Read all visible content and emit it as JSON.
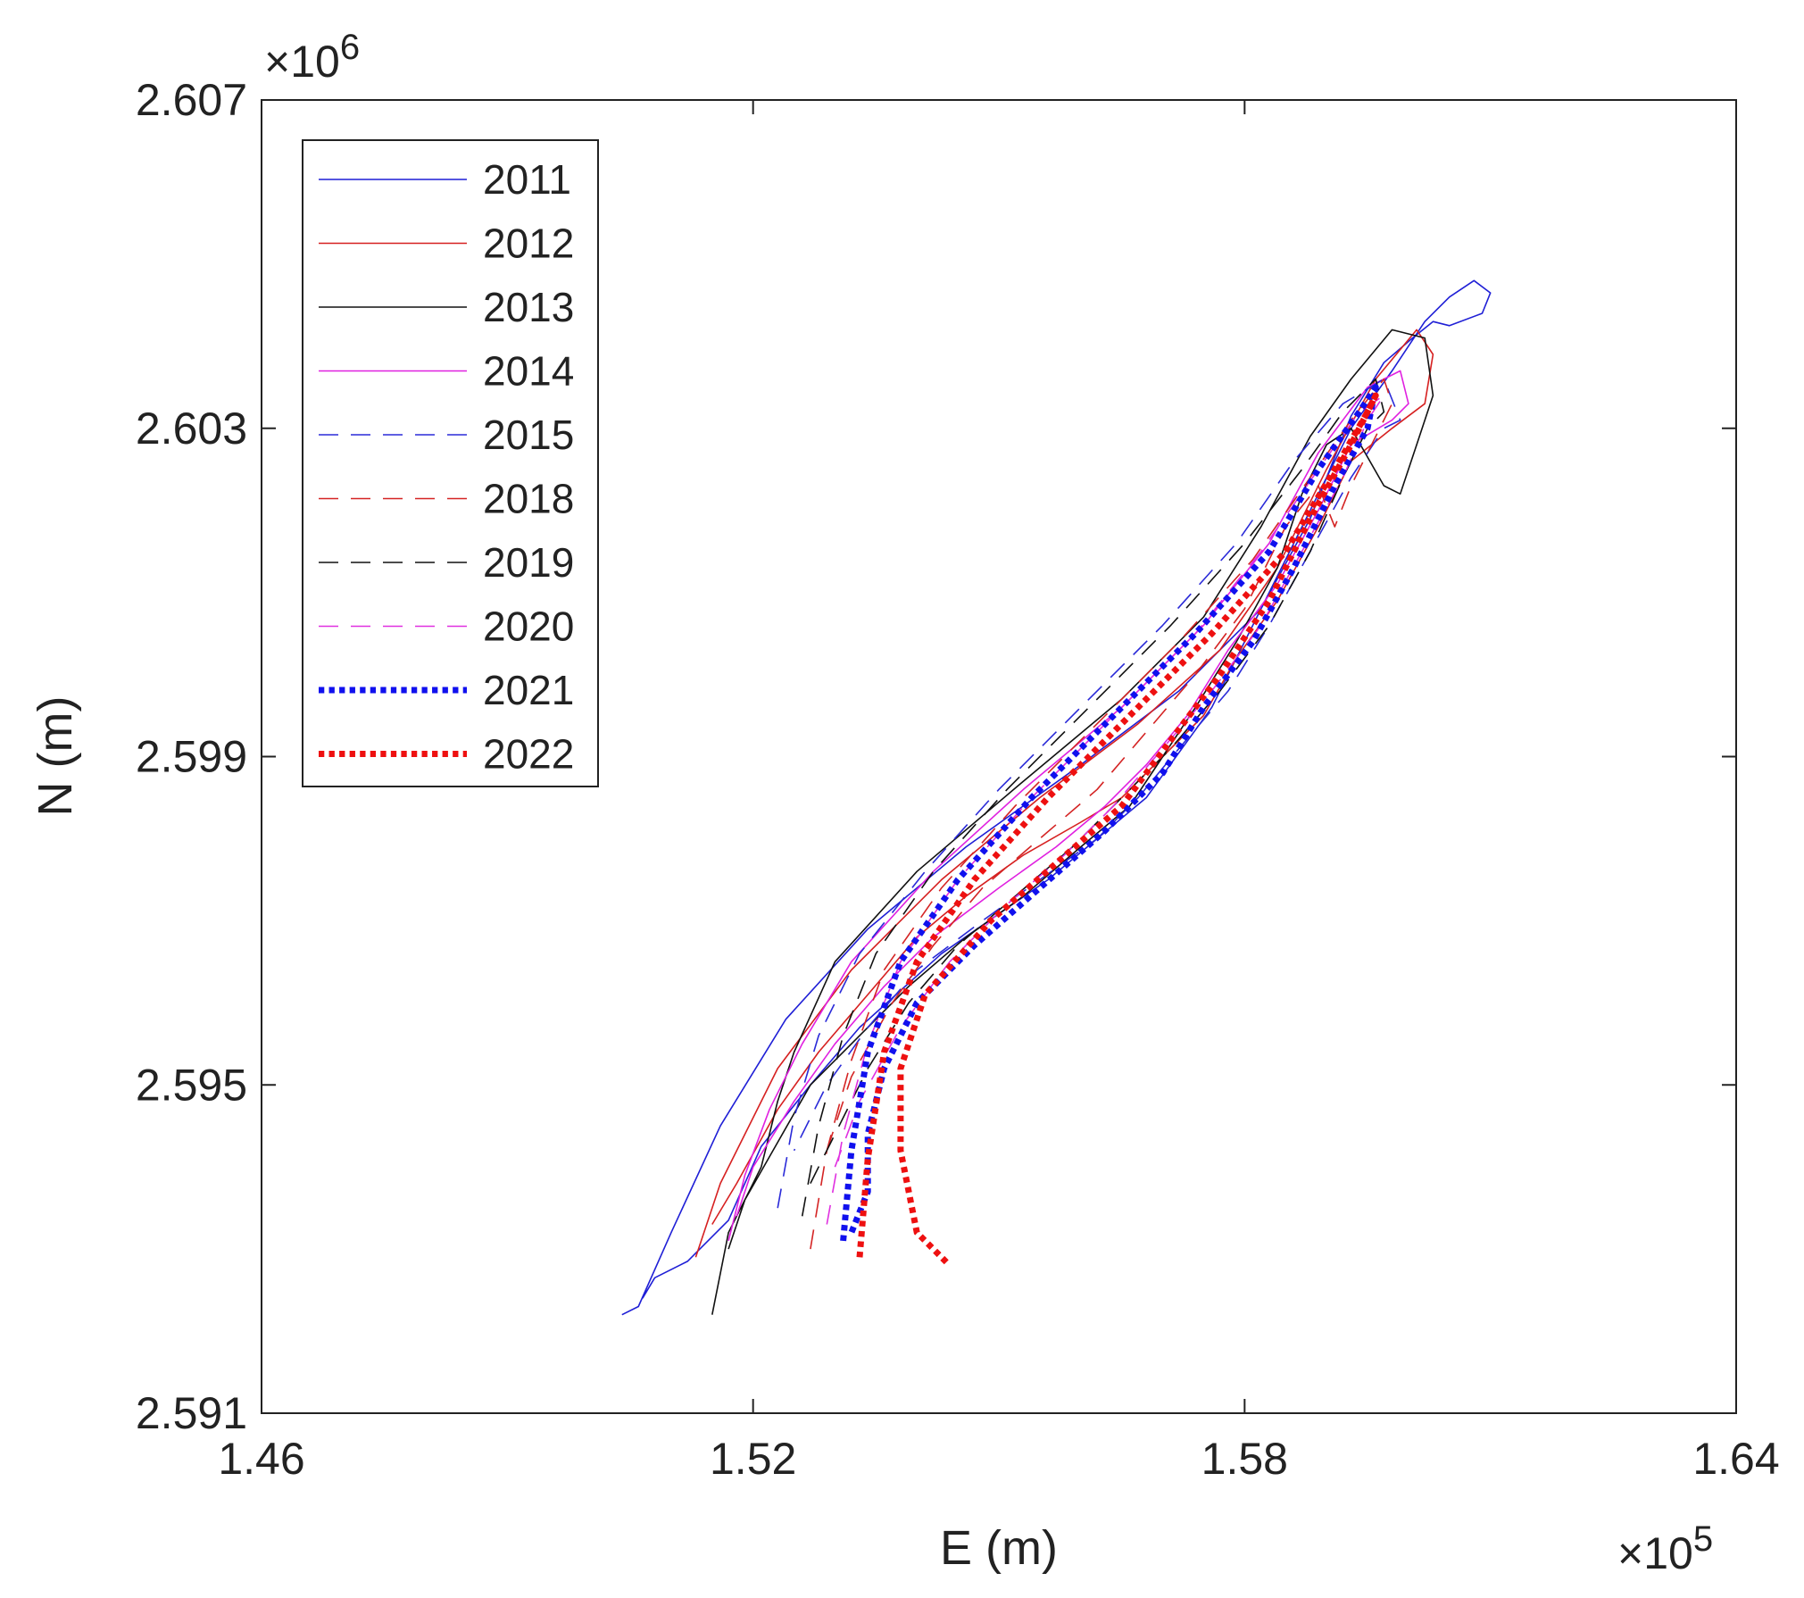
{
  "chart_data": {
    "type": "line",
    "title": "",
    "xlabel": "E (m)",
    "ylabel": "N (m)",
    "x_exponent_label": "×10^5",
    "y_exponent_label": "×10^6",
    "xlim": [
      146000,
      164000
    ],
    "ylim": [
      2591000,
      2607000
    ],
    "xticks": [
      146000,
      152000,
      158000,
      164000
    ],
    "yticks": [
      2591000,
      2595000,
      2599000,
      2603000,
      2607000
    ],
    "xtick_labels": [
      "1.46",
      "1.52",
      "1.58",
      "1.64"
    ],
    "ytick_labels": [
      "2.591",
      "2.595",
      "2.599",
      "2.603",
      "2.607"
    ],
    "grid": false,
    "legend_position": "top-left",
    "series": [
      {
        "name": "2011",
        "color": "#1f1fd6",
        "style": "solid",
        "width": 1.6,
        "x": [
          150400,
          150600,
          151000,
          151600,
          152400,
          153400,
          154600,
          156000,
          157200,
          158200,
          158800,
          159300,
          159800,
          160200,
          160500,
          160800,
          161000,
          160900,
          160500,
          160300,
          160050,
          159700,
          159300,
          158800,
          158200,
          157600,
          156800,
          155600,
          154300,
          153300,
          152700,
          152100,
          151700,
          151200,
          150800,
          150650
        ],
        "y": [
          2592200,
          2592300,
          2593200,
          2594500,
          2595800,
          2596900,
          2597900,
          2598900,
          2599800,
          2600800,
          2602000,
          2603000,
          2603700,
          2604300,
          2604600,
          2604800,
          2604650,
          2604400,
          2604250,
          2604300,
          2604100,
          2603800,
          2603150,
          2601900,
          2600800,
          2599600,
          2598500,
          2597500,
          2596600,
          2595700,
          2595000,
          2594250,
          2593350,
          2592850,
          2592650,
          2592400
        ]
      },
      {
        "name": "2012",
        "color": "#d62020",
        "style": "solid",
        "width": 1.6,
        "x": [
          151300,
          151600,
          152300,
          153200,
          154300,
          155500,
          156700,
          157700,
          158400,
          159000,
          159600,
          160100,
          160300,
          160200,
          159800,
          159300,
          158900,
          158400,
          157900,
          157500,
          157000,
          156500,
          156000,
          155300,
          154600,
          154000,
          153400,
          152800,
          152300,
          151800,
          151500
        ],
        "y": [
          2592900,
          2593800,
          2595200,
          2596400,
          2597500,
          2598500,
          2599400,
          2600300,
          2601300,
          2602500,
          2603600,
          2604200,
          2603900,
          2603300,
          2603000,
          2602600,
          2601800,
          2600900,
          2600200,
          2599500,
          2599000,
          2598500,
          2598200,
          2597800,
          2597300,
          2596800,
          2596100,
          2595400,
          2594700,
          2593800,
          2593300
        ]
      },
      {
        "name": "2013",
        "color": "#111111",
        "style": "solid",
        "width": 1.6,
        "x": [
          151500,
          151700,
          152100,
          152300,
          152500,
          153000,
          154000,
          155300,
          156500,
          157500,
          158200,
          158800,
          159300,
          159800,
          160200,
          160300,
          160100,
          159900,
          159700,
          159300,
          159000,
          158700,
          158400,
          157900,
          157400,
          157000,
          156600,
          156000,
          155300,
          154600,
          153900,
          153300,
          152700,
          152300,
          151900,
          151700
        ],
        "y": [
          2592200,
          2593200,
          2594000,
          2594800,
          2595400,
          2596500,
          2597600,
          2598700,
          2599700,
          2600700,
          2601800,
          2602900,
          2603600,
          2604200,
          2604100,
          2603400,
          2602800,
          2602200,
          2602300,
          2603000,
          2602800,
          2602200,
          2601300,
          2600400,
          2599600,
          2599000,
          2598400,
          2597900,
          2597300,
          2596800,
          2596200,
          2595600,
          2595000,
          2594300,
          2593600,
          2593000
        ]
      },
      {
        "name": "2014",
        "color": "#e020e0",
        "style": "solid",
        "width": 1.6,
        "x": [
          151700,
          151900,
          152200,
          152600,
          153200,
          154200,
          155300,
          156500,
          157500,
          158300,
          158900,
          159500,
          159900,
          160000,
          159800,
          159300,
          158900,
          158400,
          157800,
          157300,
          156800,
          156300,
          155700,
          155000,
          154200,
          153600,
          153000,
          152500,
          152000,
          151800
        ],
        "y": [
          2593100,
          2593900,
          2594700,
          2595500,
          2596500,
          2597600,
          2598600,
          2599600,
          2600600,
          2601600,
          2602700,
          2603500,
          2603700,
          2603300,
          2603100,
          2602800,
          2602000,
          2601100,
          2600300,
          2599500,
          2598900,
          2598400,
          2597900,
          2597400,
          2596800,
          2596200,
          2595500,
          2594800,
          2594000,
          2593400
        ]
      },
      {
        "name": "2015",
        "color": "#2a2ad8",
        "style": "dashed",
        "width": 1.6,
        "x": [
          152300,
          152500,
          152800,
          153300,
          154100,
          155000,
          156000,
          157000,
          157900,
          158600,
          159200,
          159700,
          159900,
          159700,
          159300,
          158800,
          158300,
          157800,
          157200,
          156700,
          156200,
          155500,
          154800,
          154000,
          153400,
          152900,
          152500
        ],
        "y": [
          2593500,
          2594600,
          2595600,
          2596600,
          2597600,
          2598600,
          2599600,
          2600600,
          2601600,
          2602600,
          2603300,
          2603600,
          2603100,
          2603000,
          2602400,
          2601500,
          2600600,
          2599800,
          2599100,
          2598500,
          2598000,
          2597500,
          2597000,
          2596400,
          2595700,
          2595000,
          2594200
        ]
      },
      {
        "name": "2018",
        "color": "#d42424",
        "style": "dashed",
        "width": 1.6,
        "x": [
          152700,
          152900,
          153200,
          153600,
          154300,
          155200,
          156200,
          157200,
          158100,
          158800,
          159300,
          159700,
          159800,
          159600,
          159300,
          159100,
          158900,
          158500,
          158000,
          157400,
          156800,
          156200,
          155500,
          154800,
          154200,
          153700,
          153200,
          152900
        ],
        "y": [
          2593000,
          2594200,
          2595300,
          2596400,
          2597400,
          2598400,
          2599400,
          2600400,
          2601400,
          2602400,
          2603100,
          2603600,
          2603300,
          2602900,
          2602300,
          2601800,
          2602300,
          2601800,
          2600800,
          2600000,
          2599300,
          2598600,
          2598000,
          2597400,
          2596700,
          2596000,
          2595100,
          2594200
        ]
      },
      {
        "name": "2019",
        "color": "#111111",
        "style": "dashed",
        "width": 1.6,
        "x": [
          152600,
          152800,
          153100,
          153500,
          154200,
          155100,
          156100,
          157100,
          158000,
          158700,
          159200,
          159600,
          159700,
          159500,
          159200,
          158800,
          158300,
          157700,
          157100,
          156500,
          155900,
          155200,
          154500,
          153900,
          153400,
          153000,
          152700
        ],
        "y": [
          2593400,
          2594500,
          2595600,
          2596600,
          2597600,
          2598600,
          2599600,
          2600600,
          2601600,
          2602500,
          2603200,
          2603600,
          2603200,
          2603000,
          2602400,
          2601500,
          2600600,
          2599800,
          2599100,
          2598500,
          2597900,
          2597300,
          2596700,
          2596000,
          2595200,
          2594400,
          2593800
        ]
      },
      {
        "name": "2020",
        "color": "#e030e0",
        "style": "dashed",
        "width": 1.6,
        "x": [
          152900,
          153100,
          153400,
          153800,
          154500,
          155400,
          156400,
          157400,
          158200,
          158900,
          159400,
          159700,
          159500,
          159200,
          158700,
          158200,
          157600,
          157000,
          156400,
          155800,
          155100,
          154400,
          153800,
          153300,
          153000
        ],
        "y": [
          2593300,
          2594400,
          2595500,
          2596500,
          2597500,
          2598500,
          2599500,
          2600500,
          2601500,
          2602500,
          2603200,
          2603400,
          2603100,
          2602400,
          2601500,
          2600600,
          2599800,
          2599100,
          2598400,
          2597800,
          2597200,
          2596500,
          2595700,
          2594800,
          2594000
        ]
      },
      {
        "name": "2021",
        "color": "#1010ee",
        "style": "dotted",
        "width": 7,
        "x": [
          153100,
          153200,
          153400,
          153800,
          154500,
          155400,
          156400,
          157400,
          158300,
          158900,
          159400,
          159600,
          159500,
          159100,
          158600,
          158100,
          157500,
          157000,
          156300,
          155500,
          154700,
          154000,
          153600,
          153400,
          153400,
          153200
        ],
        "y": [
          2593100,
          2594200,
          2595400,
          2596500,
          2597500,
          2598500,
          2599500,
          2600500,
          2601500,
          2602500,
          2603200,
          2603500,
          2603000,
          2602300,
          2601300,
          2600400,
          2599600,
          2598800,
          2598100,
          2597400,
          2596700,
          2596000,
          2595200,
          2594400,
          2593700,
          2593200
        ]
      },
      {
        "name": "2022",
        "color": "#ee1010",
        "style": "dotted",
        "width": 7,
        "x": [
          153300,
          153400,
          153600,
          154000,
          154700,
          155600,
          156600,
          157600,
          158500,
          159100,
          159500,
          159600,
          159300,
          158800,
          158300,
          157700,
          157100,
          156500,
          155700,
          154900,
          154100,
          153800,
          153800,
          154000,
          154400
        ],
        "y": [
          2592900,
          2594100,
          2595400,
          2596500,
          2597500,
          2598500,
          2599500,
          2600500,
          2601500,
          2602500,
          2603200,
          2603400,
          2602800,
          2601900,
          2600900,
          2600000,
          2599200,
          2598400,
          2597700,
          2597000,
          2596100,
          2595200,
          2594200,
          2593200,
          2592800
        ]
      }
    ]
  }
}
